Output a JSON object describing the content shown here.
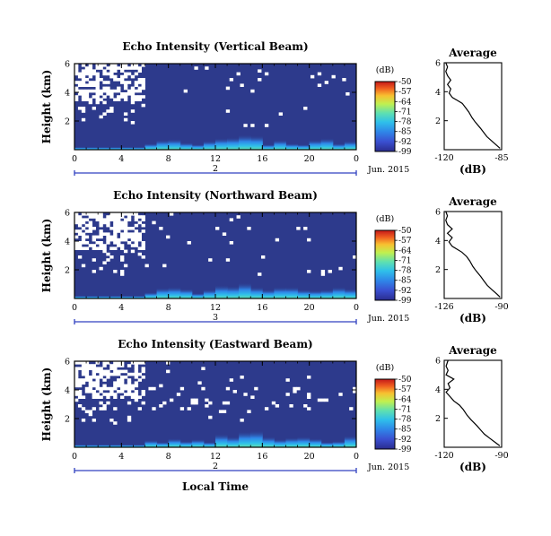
{
  "chart_data": [
    {
      "type": "heatmap",
      "title": "Echo Intensity (Vertical Beam)",
      "ylabel": "Height (km)",
      "xlabel": "",
      "x_ticks": [
        "0",
        "4",
        "8",
        "12",
        "16",
        "20",
        "0"
      ],
      "y_ticks": [
        "2",
        "4",
        "6"
      ],
      "xlim": [
        0,
        24
      ],
      "ylim": [
        0,
        6
      ],
      "day_label": "2",
      "date_label": "Jun. 2015",
      "colorbar": {
        "unit": "(dB)",
        "ticks": [
          "-50",
          "-57",
          "-64",
          "-71",
          "-78",
          "-85",
          "-92",
          "-99"
        ],
        "range": [
          -99,
          -50
        ]
      },
      "average_profile": {
        "title": "Average",
        "xlabel": "(dB)",
        "x_ticks": [
          "-120",
          "-85"
        ],
        "xlim": [
          -120,
          -85
        ],
        "y_ticks": [
          "2",
          "4",
          "6"
        ],
        "ylim": [
          0,
          6
        ],
        "points": [
          [
            -86,
            0.1
          ],
          [
            -88,
            0.3
          ],
          [
            -91,
            0.6
          ],
          [
            -94,
            0.9
          ],
          [
            -96,
            1.2
          ],
          [
            -98,
            1.5
          ],
          [
            -101,
            1.9
          ],
          [
            -103,
            2.2
          ],
          [
            -105,
            2.6
          ],
          [
            -107,
            2.9
          ],
          [
            -109,
            3.2
          ],
          [
            -112,
            3.4
          ],
          [
            -115,
            3.6
          ],
          [
            -117,
            3.9
          ],
          [
            -116,
            4.2
          ],
          [
            -118,
            4.5
          ],
          [
            -116,
            4.8
          ],
          [
            -118,
            5.1
          ],
          [
            -119,
            5.4
          ],
          [
            -118,
            5.7
          ],
          [
            -119,
            6.0
          ]
        ]
      }
    },
    {
      "type": "heatmap",
      "title": "Echo Intensity (Northward Beam)",
      "ylabel": "Height (km)",
      "xlabel": "",
      "x_ticks": [
        "0",
        "4",
        "8",
        "12",
        "16",
        "20",
        "0"
      ],
      "y_ticks": [
        "2",
        "4",
        "6"
      ],
      "xlim": [
        0,
        24
      ],
      "ylim": [
        0,
        6
      ],
      "day_label": "3",
      "date_label": "Jun. 2015",
      "colorbar": {
        "unit": "(dB)",
        "ticks": [
          "-50",
          "-57",
          "-64",
          "-71",
          "-78",
          "-85",
          "-92",
          "-99"
        ],
        "range": [
          -99,
          -50
        ]
      },
      "average_profile": {
        "title": "Average",
        "xlabel": "(dB)",
        "x_ticks": [
          "-126",
          "-90"
        ],
        "xlim": [
          -126,
          -90
        ],
        "y_ticks": [
          "2",
          "4",
          "6"
        ],
        "ylim": [
          0,
          6
        ],
        "points": [
          [
            -91,
            0.1
          ],
          [
            -93,
            0.3
          ],
          [
            -96,
            0.6
          ],
          [
            -99,
            0.9
          ],
          [
            -101,
            1.2
          ],
          [
            -103,
            1.5
          ],
          [
            -106,
            1.9
          ],
          [
            -108,
            2.2
          ],
          [
            -110,
            2.6
          ],
          [
            -112,
            2.9
          ],
          [
            -115,
            3.2
          ],
          [
            -118,
            3.4
          ],
          [
            -121,
            3.6
          ],
          [
            -123,
            3.9
          ],
          [
            -121,
            4.2
          ],
          [
            -124,
            4.5
          ],
          [
            -121,
            4.8
          ],
          [
            -124,
            5.1
          ],
          [
            -125,
            5.4
          ],
          [
            -124,
            5.7
          ],
          [
            -125,
            6.0
          ]
        ]
      }
    },
    {
      "type": "heatmap",
      "title": "Echo Intensity (Eastward Beam)",
      "ylabel": "Height (km)",
      "xlabel": "Local Time",
      "x_ticks": [
        "0",
        "4",
        "8",
        "12",
        "16",
        "20",
        "0"
      ],
      "y_ticks": [
        "2",
        "4",
        "6"
      ],
      "xlim": [
        0,
        24
      ],
      "ylim": [
        0,
        6
      ],
      "day_label": "2",
      "date_label": "Jun. 2015",
      "colorbar": {
        "unit": "(dB)",
        "ticks": [
          "-50",
          "-57",
          "-64",
          "-71",
          "-78",
          "-85",
          "-92",
          "-99"
        ],
        "range": [
          -99,
          -50
        ]
      },
      "average_profile": {
        "title": "Average",
        "xlabel": "(dB)",
        "x_ticks": [
          "-120",
          "-90"
        ],
        "xlim": [
          -120,
          -90
        ],
        "y_ticks": [
          "2",
          "4",
          "6"
        ],
        "ylim": [
          0,
          6
        ],
        "points": [
          [
            -91,
            0.1
          ],
          [
            -93,
            0.3
          ],
          [
            -96,
            0.6
          ],
          [
            -99,
            0.9
          ],
          [
            -101,
            1.2
          ],
          [
            -103,
            1.5
          ],
          [
            -106,
            1.9
          ],
          [
            -108,
            2.2
          ],
          [
            -110,
            2.6
          ],
          [
            -112,
            2.9
          ],
          [
            -115,
            3.2
          ],
          [
            -117,
            3.5
          ],
          [
            -119,
            3.8
          ],
          [
            -117,
            4.1
          ],
          [
            -118,
            4.4
          ],
          [
            -115,
            4.7
          ],
          [
            -119,
            5.0
          ],
          [
            -118,
            5.3
          ],
          [
            -119,
            5.6
          ],
          [
            -118,
            6.0
          ]
        ]
      }
    }
  ],
  "colors": {
    "background": "#2d3a8c",
    "gap": "#ffffff",
    "colormap": [
      "#2a2c8e",
      "#3a4fd0",
      "#2f86e8",
      "#2fc0ea",
      "#5fe0b0",
      "#c0f050",
      "#f8c030",
      "#f06020",
      "#c41818"
    ],
    "timeline": "#3040c0"
  }
}
